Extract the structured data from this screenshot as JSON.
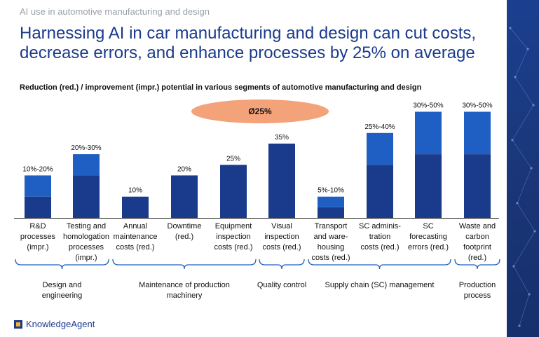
{
  "kicker": "AI use in automotive manufacturing and design",
  "headline_line1": "Harnessing AI in car manufacturing and design can cut costs,",
  "headline_line2": "decrease errors, and enhance processes by 25% on average",
  "average_badge": "Ø25%",
  "brand": "KnowledgeAgent",
  "colors": {
    "dark": "#1a3a8c",
    "light": "#1f5fc4",
    "accent": "#f4a27a",
    "brand": "#1a3a8c"
  },
  "chart_data": {
    "type": "bar",
    "title": "Reduction (red.) / improvement (impr.) potential in various segments of automotive manufacturing and design",
    "ylim": [
      0,
      50
    ],
    "categories": [
      "R&D processes (impr.)",
      "Testing and homologation processes (impr.)",
      "Annual maintenance costs (red.)",
      "Downtime (red.)",
      "Equipment inspection costs (red.)",
      "Visual inspection costs (red.)",
      "Transport and warehousing costs (red.)",
      "SC administration costs (red.)",
      "SC forecasting errors (red.)",
      "Waste and carbon footprint (red.)"
    ],
    "series": [
      {
        "values": [
          10,
          20,
          10,
          20,
          25,
          35,
          5,
          25,
          30,
          30
        ]
      },
      {
        "values": [
          20,
          30,
          10,
          20,
          25,
          35,
          10,
          40,
          50,
          50
        ]
      }
    ],
    "data_labels": [
      "10%-20%",
      "20%-30%",
      "10%",
      "20%",
      "25%",
      "35%",
      "5%-10%",
      "25%-40%",
      "30%-50%",
      "30%-50%"
    ],
    "category_label_lines": [
      [
        "R&D",
        "processes",
        "(impr.)"
      ],
      [
        "Testing and",
        "homologation",
        "processes",
        "(impr.)"
      ],
      [
        "Annual",
        "maintenance",
        "costs (red.)"
      ],
      [
        "Downtime",
        "(red.)"
      ],
      [
        "Equipment",
        "inspection",
        "costs (red.)"
      ],
      [
        "Visual",
        "inspection",
        "costs (red.)"
      ],
      [
        "Transport",
        "and ware-",
        "housing",
        "costs (red.)"
      ],
      [
        "SC adminis-",
        "tration",
        "costs (red.)"
      ],
      [
        "SC",
        "forecasting",
        "errors (red.)"
      ],
      [
        "Waste and",
        "carbon",
        "footprint",
        "(red.)"
      ]
    ],
    "groups": [
      {
        "label_lines": [
          "Design and",
          "engineering"
        ],
        "from": 0,
        "to": 1
      },
      {
        "label_lines": [
          "Maintenance of production",
          "machinery"
        ],
        "from": 2,
        "to": 4
      },
      {
        "label_lines": [
          "Quality control"
        ],
        "from": 5,
        "to": 5
      },
      {
        "label_lines": [
          "Supply chain (SC) management"
        ],
        "from": 6,
        "to": 8
      },
      {
        "label_lines": [
          "Production",
          "process"
        ],
        "from": 9,
        "to": 9
      }
    ]
  }
}
